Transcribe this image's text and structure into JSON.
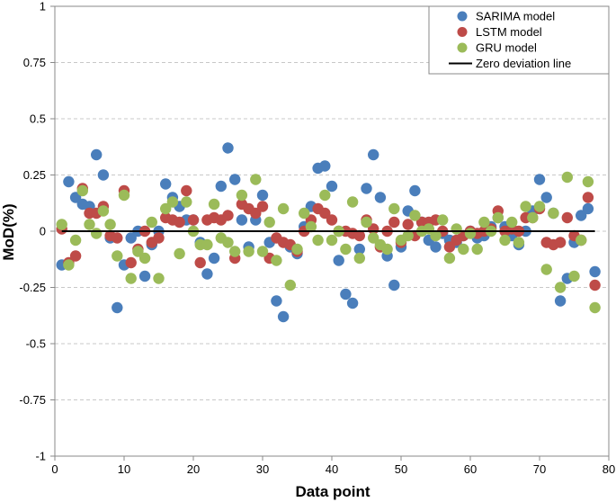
{
  "chart_data": {
    "type": "scatter",
    "title": "",
    "xlabel": "Data point",
    "ylabel": "MoD(%)",
    "xlim": [
      0,
      80
    ],
    "ylim": [
      -1,
      1
    ],
    "x_ticks": [
      0,
      10,
      20,
      30,
      40,
      50,
      60,
      70,
      80
    ],
    "y_ticks": [
      -1,
      -0.75,
      -0.5,
      -0.25,
      0,
      0.25,
      0.5,
      0.75,
      1
    ],
    "x_tick_labels": [
      "0",
      "10",
      "20",
      "30",
      "40",
      "50",
      "60",
      "70",
      "80"
    ],
    "y_tick_labels": [
      "-1",
      "-0.75",
      "-0.5",
      "-0.25",
      "0",
      "0.25",
      "0.5",
      "0.75",
      "1"
    ],
    "grid": "horizontal dashed",
    "legend_position": "top-right",
    "zero_line": {
      "name": "Zero deviation line",
      "value": 0,
      "color": "#000000"
    },
    "series": [
      {
        "name": "SARIMA model",
        "color": "#4a7ebb",
        "x": [
          1,
          2,
          3,
          4,
          5,
          6,
          7,
          8,
          9,
          10,
          11,
          12,
          13,
          14,
          15,
          16,
          17,
          18,
          19,
          20,
          21,
          22,
          23,
          24,
          25,
          26,
          27,
          28,
          29,
          30,
          31,
          32,
          33,
          34,
          35,
          36,
          37,
          38,
          39,
          40,
          41,
          42,
          43,
          44,
          45,
          46,
          47,
          48,
          49,
          50,
          51,
          52,
          53,
          54,
          55,
          56,
          57,
          58,
          59,
          60,
          61,
          62,
          63,
          64,
          65,
          66,
          67,
          68,
          69,
          70,
          71,
          72,
          73,
          74,
          75,
          76,
          77,
          78
        ],
        "values": [
          -0.15,
          0.22,
          0.15,
          0.12,
          0.11,
          0.34,
          0.25,
          -0.03,
          -0.34,
          -0.15,
          -0.03,
          0.0,
          -0.2,
          -0.06,
          0.0,
          0.21,
          0.15,
          0.11,
          0.05,
          0.05,
          -0.05,
          -0.19,
          -0.12,
          0.2,
          0.37,
          0.23,
          0.05,
          -0.07,
          0.05,
          0.16,
          -0.05,
          -0.31,
          -0.38,
          -0.07,
          -0.1,
          0.02,
          0.11,
          0.28,
          0.29,
          0.2,
          -0.13,
          -0.28,
          -0.32,
          -0.08,
          0.19,
          0.34,
          0.15,
          -0.11,
          -0.24,
          -0.07,
          0.09,
          0.18,
          0.04,
          -0.04,
          -0.07,
          -0.01,
          -0.04,
          -0.05,
          -0.02,
          0.0,
          -0.03,
          -0.02,
          0.02,
          0.06,
          0.02,
          -0.02,
          -0.06,
          0.0,
          0.09,
          0.23,
          0.15,
          0.08,
          -0.31,
          -0.21,
          -0.05,
          0.07,
          0.1,
          -0.18
        ]
      },
      {
        "name": "LSTM model",
        "color": "#be4b48",
        "x": [
          1,
          2,
          3,
          4,
          5,
          6,
          7,
          8,
          9,
          10,
          11,
          12,
          13,
          14,
          15,
          16,
          17,
          18,
          19,
          20,
          21,
          22,
          23,
          24,
          25,
          26,
          27,
          28,
          29,
          30,
          31,
          32,
          33,
          34,
          35,
          36,
          37,
          38,
          39,
          40,
          41,
          42,
          43,
          44,
          45,
          46,
          47,
          48,
          49,
          50,
          51,
          52,
          53,
          54,
          55,
          56,
          57,
          58,
          59,
          60,
          61,
          62,
          63,
          64,
          65,
          66,
          67,
          68,
          69,
          70,
          71,
          72,
          73,
          74,
          75,
          76,
          77,
          78
        ],
        "values": [
          0.01,
          -0.14,
          -0.11,
          0.19,
          0.08,
          0.08,
          0.11,
          -0.02,
          -0.03,
          0.18,
          -0.14,
          -0.08,
          0.0,
          -0.05,
          -0.03,
          0.06,
          0.05,
          0.04,
          0.18,
          0.05,
          -0.14,
          0.05,
          0.06,
          0.05,
          0.07,
          -0.12,
          0.12,
          0.1,
          0.08,
          0.11,
          -0.12,
          -0.03,
          -0.05,
          -0.06,
          -0.09,
          0.0,
          0.05,
          0.1,
          0.08,
          0.05,
          0.0,
          0.0,
          -0.01,
          -0.02,
          0.05,
          0.01,
          -0.07,
          0.0,
          0.04,
          -0.05,
          0.03,
          -0.02,
          0.04,
          0.04,
          0.05,
          0.0,
          -0.07,
          -0.04,
          -0.02,
          0.0,
          -0.01,
          0.0,
          0.01,
          0.09,
          0.0,
          0.01,
          0.0,
          0.06,
          0.06,
          0.1,
          -0.05,
          -0.06,
          -0.05,
          0.06,
          -0.02,
          -0.04,
          0.15,
          -0.24
        ]
      },
      {
        "name": "GRU model",
        "color": "#9bbb59",
        "x": [
          1,
          2,
          3,
          4,
          5,
          6,
          7,
          8,
          9,
          10,
          11,
          12,
          13,
          14,
          15,
          16,
          17,
          18,
          19,
          20,
          21,
          22,
          23,
          24,
          25,
          26,
          27,
          28,
          29,
          30,
          31,
          32,
          33,
          34,
          35,
          36,
          37,
          38,
          39,
          40,
          41,
          42,
          43,
          44,
          45,
          46,
          47,
          48,
          49,
          50,
          51,
          52,
          53,
          54,
          55,
          56,
          57,
          58,
          59,
          60,
          61,
          62,
          63,
          64,
          65,
          66,
          67,
          68,
          69,
          70,
          71,
          72,
          73,
          74,
          75,
          76,
          77,
          78
        ],
        "values": [
          0.03,
          -0.15,
          -0.04,
          0.18,
          0.03,
          -0.01,
          0.09,
          0.03,
          -0.11,
          0.16,
          -0.21,
          -0.09,
          -0.12,
          0.04,
          -0.21,
          0.1,
          0.13,
          -0.1,
          0.13,
          0.0,
          -0.06,
          -0.06,
          0.12,
          -0.03,
          -0.05,
          -0.09,
          0.16,
          -0.09,
          0.23,
          -0.09,
          0.04,
          -0.13,
          0.1,
          -0.24,
          -0.08,
          0.08,
          0.02,
          -0.04,
          0.16,
          -0.04,
          0.0,
          -0.08,
          0.13,
          -0.12,
          0.04,
          -0.03,
          -0.06,
          -0.08,
          0.1,
          -0.04,
          -0.02,
          0.07,
          0.0,
          0.01,
          -0.02,
          0.05,
          -0.12,
          0.01,
          -0.08,
          -0.01,
          -0.08,
          0.04,
          0.0,
          0.06,
          -0.04,
          0.04,
          -0.05,
          0.11,
          0.06,
          0.11,
          -0.17,
          0.08,
          -0.25,
          0.24,
          -0.2,
          -0.04,
          0.22,
          -0.34
        ]
      }
    ]
  }
}
